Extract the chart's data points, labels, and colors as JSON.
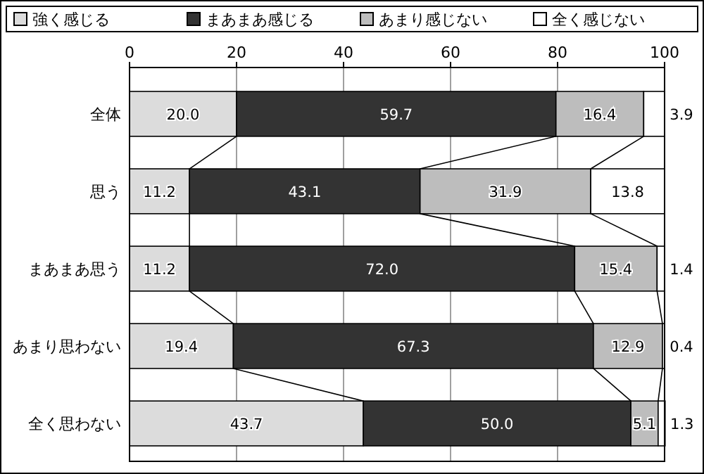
{
  "chart_data": {
    "type": "bar",
    "orientation": "horizontal",
    "stacked": true,
    "categories": [
      "全体",
      "思う",
      "まあまあ思う",
      "あまり思わない",
      "全く思わない"
    ],
    "series": [
      {
        "name": "強く感じる",
        "color": "#dcdcdc",
        "values": [
          20.0,
          11.2,
          11.2,
          19.4,
          43.7
        ],
        "value_labels": [
          "20.0",
          "11.2",
          "11.2",
          "19.4",
          "43.7"
        ]
      },
      {
        "name": "まあまあ感じる",
        "color": "#333333",
        "values": [
          59.7,
          43.1,
          72.0,
          67.3,
          50.0
        ],
        "value_labels": [
          "59.7",
          "43.1",
          "72.0",
          "67.3",
          "50.0"
        ]
      },
      {
        "name": "あまり感じない",
        "color": "#bdbdbd",
        "values": [
          16.4,
          31.9,
          15.4,
          12.9,
          5.1
        ],
        "value_labels": [
          "16.4",
          "31.9",
          "15.4",
          "12.9",
          "5.1"
        ]
      },
      {
        "name": "全く感じない",
        "color": "#ffffff",
        "values": [
          3.9,
          13.8,
          1.4,
          0.4,
          1.3
        ],
        "value_labels": [
          "3.9",
          "13.8",
          "1.4",
          "0.4",
          "1.3"
        ]
      }
    ],
    "xlim": [
      0,
      100
    ],
    "xticks": [
      0,
      20,
      40,
      60,
      80,
      100
    ],
    "grid": "x",
    "legend": "top"
  }
}
